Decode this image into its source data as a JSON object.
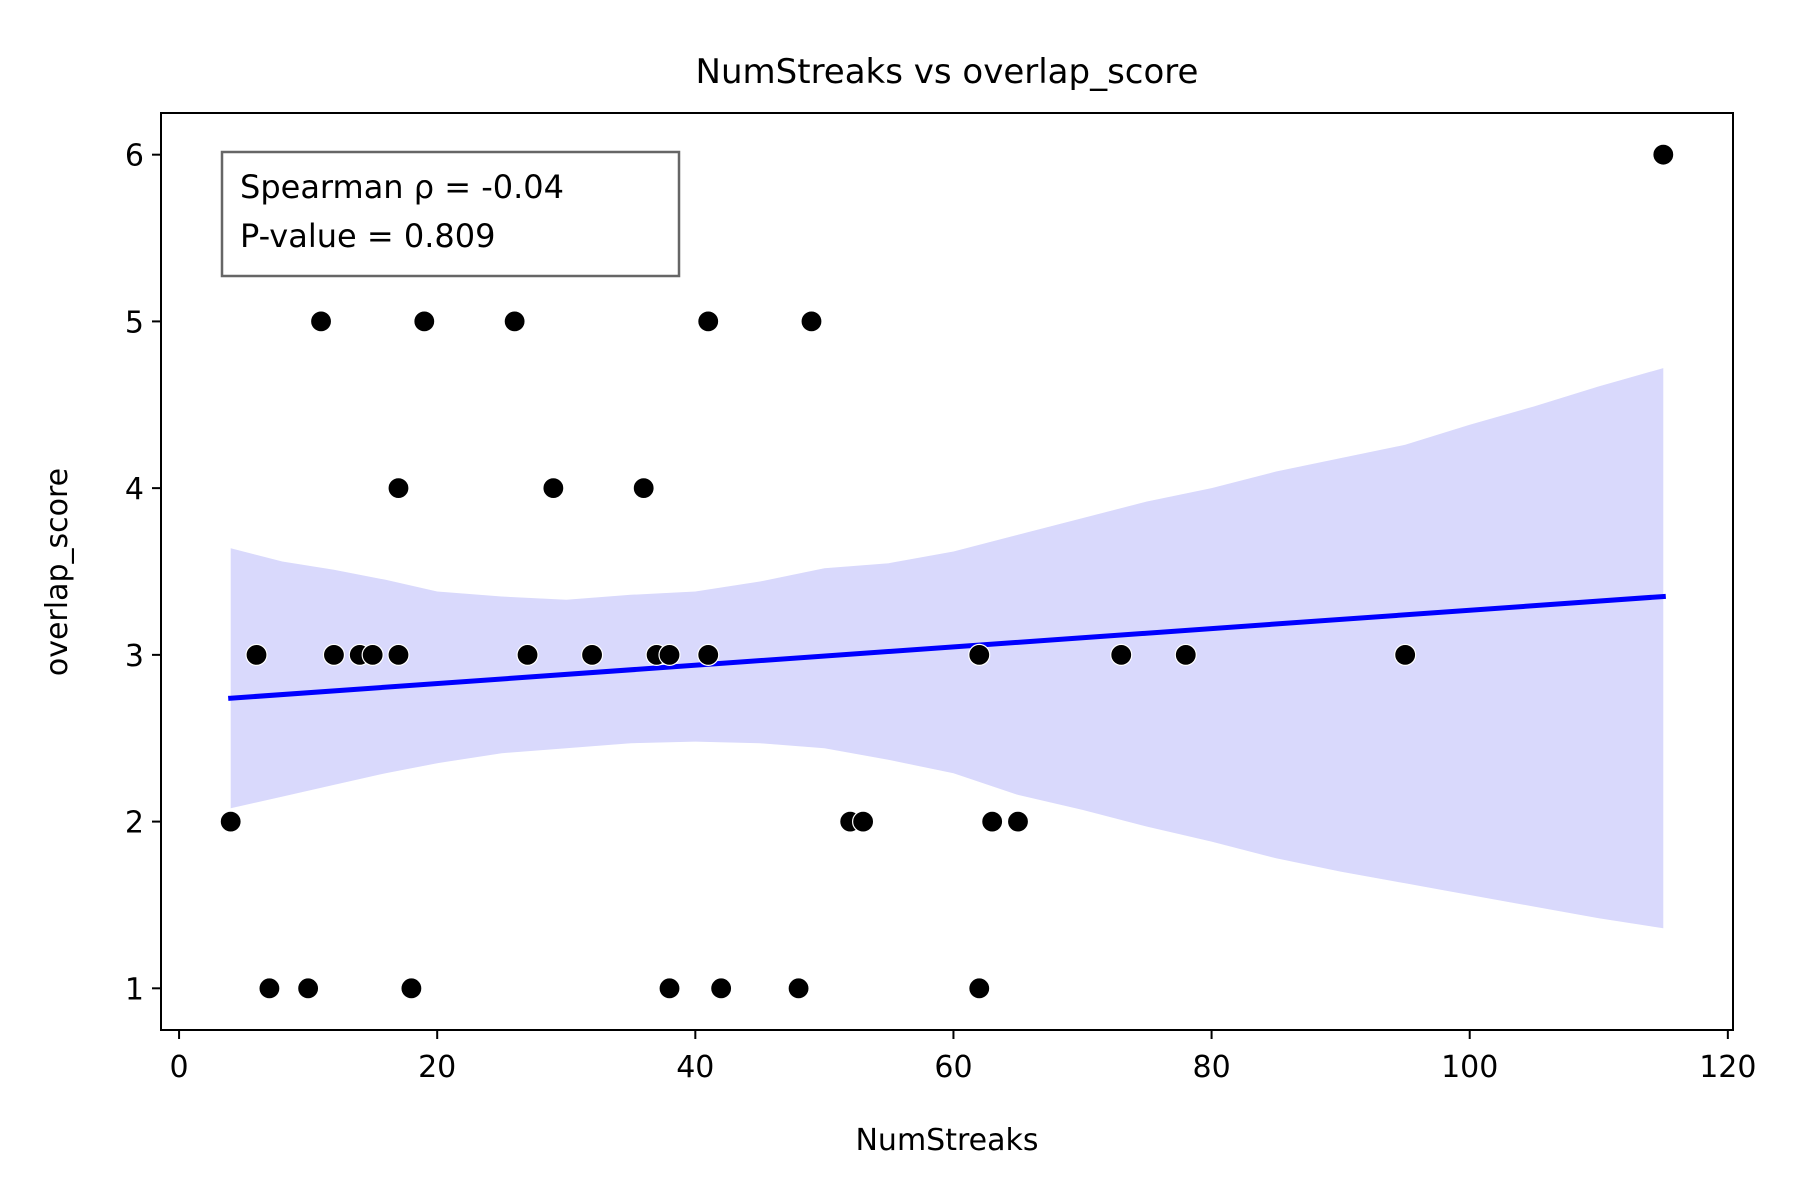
{
  "chart_data": {
    "type": "scatter",
    "title": "NumStreaks vs overlap_score",
    "xlabel": "NumStreaks",
    "ylabel": "overlap_score",
    "xlim": [
      -1.4,
      120.4
    ],
    "ylim": [
      0.75,
      6.25
    ],
    "xticks": [
      0,
      20,
      40,
      60,
      80,
      100,
      120
    ],
    "yticks": [
      1,
      2,
      3,
      4,
      5,
      6
    ],
    "grid": false,
    "annotation": {
      "lines": [
        "Spearman ρ = -0.04",
        "P-value = 0.809"
      ],
      "placement": "top-left"
    },
    "points": [
      {
        "x": 4,
        "y": 2
      },
      {
        "x": 6,
        "y": 3
      },
      {
        "x": 7,
        "y": 1
      },
      {
        "x": 10,
        "y": 1
      },
      {
        "x": 11,
        "y": 5
      },
      {
        "x": 12,
        "y": 3
      },
      {
        "x": 14,
        "y": 3
      },
      {
        "x": 15,
        "y": 3
      },
      {
        "x": 17,
        "y": 4
      },
      {
        "x": 17,
        "y": 3
      },
      {
        "x": 18,
        "y": 1
      },
      {
        "x": 19,
        "y": 5
      },
      {
        "x": 26,
        "y": 5
      },
      {
        "x": 27,
        "y": 3
      },
      {
        "x": 29,
        "y": 4
      },
      {
        "x": 32,
        "y": 3
      },
      {
        "x": 36,
        "y": 4
      },
      {
        "x": 37,
        "y": 3
      },
      {
        "x": 38,
        "y": 3
      },
      {
        "x": 38,
        "y": 1
      },
      {
        "x": 41,
        "y": 5
      },
      {
        "x": 41,
        "y": 3
      },
      {
        "x": 42,
        "y": 1
      },
      {
        "x": 48,
        "y": 1
      },
      {
        "x": 49,
        "y": 5
      },
      {
        "x": 52,
        "y": 2
      },
      {
        "x": 53,
        "y": 2
      },
      {
        "x": 62,
        "y": 3
      },
      {
        "x": 62,
        "y": 1
      },
      {
        "x": 63,
        "y": 2
      },
      {
        "x": 65,
        "y": 2
      },
      {
        "x": 73,
        "y": 3
      },
      {
        "x": 78,
        "y": 3
      },
      {
        "x": 95,
        "y": 3
      },
      {
        "x": 115,
        "y": 6
      }
    ],
    "regression": {
      "x": [
        4,
        115
      ],
      "y": [
        2.74,
        3.35
      ],
      "color": "#0000ff"
    },
    "confidence_band": {
      "color": "#d9d9fc",
      "x": [
        4,
        8,
        12,
        16,
        20,
        25,
        30,
        35,
        40,
        45,
        50,
        55,
        60,
        65,
        70,
        75,
        80,
        85,
        90,
        95,
        100,
        105,
        110,
        115
      ],
      "upper": [
        3.64,
        3.56,
        3.51,
        3.45,
        3.38,
        3.35,
        3.33,
        3.36,
        3.38,
        3.44,
        3.52,
        3.55,
        3.62,
        3.72,
        3.82,
        3.92,
        4.0,
        4.1,
        4.18,
        4.26,
        4.38,
        4.49,
        4.61,
        4.72
      ],
      "lower": [
        2.08,
        2.15,
        2.22,
        2.29,
        2.35,
        2.41,
        2.44,
        2.47,
        2.48,
        2.47,
        2.44,
        2.37,
        2.29,
        2.16,
        2.07,
        1.97,
        1.88,
        1.78,
        1.7,
        1.63,
        1.56,
        1.49,
        1.42,
        1.36
      ]
    },
    "point_color": "#000000"
  }
}
